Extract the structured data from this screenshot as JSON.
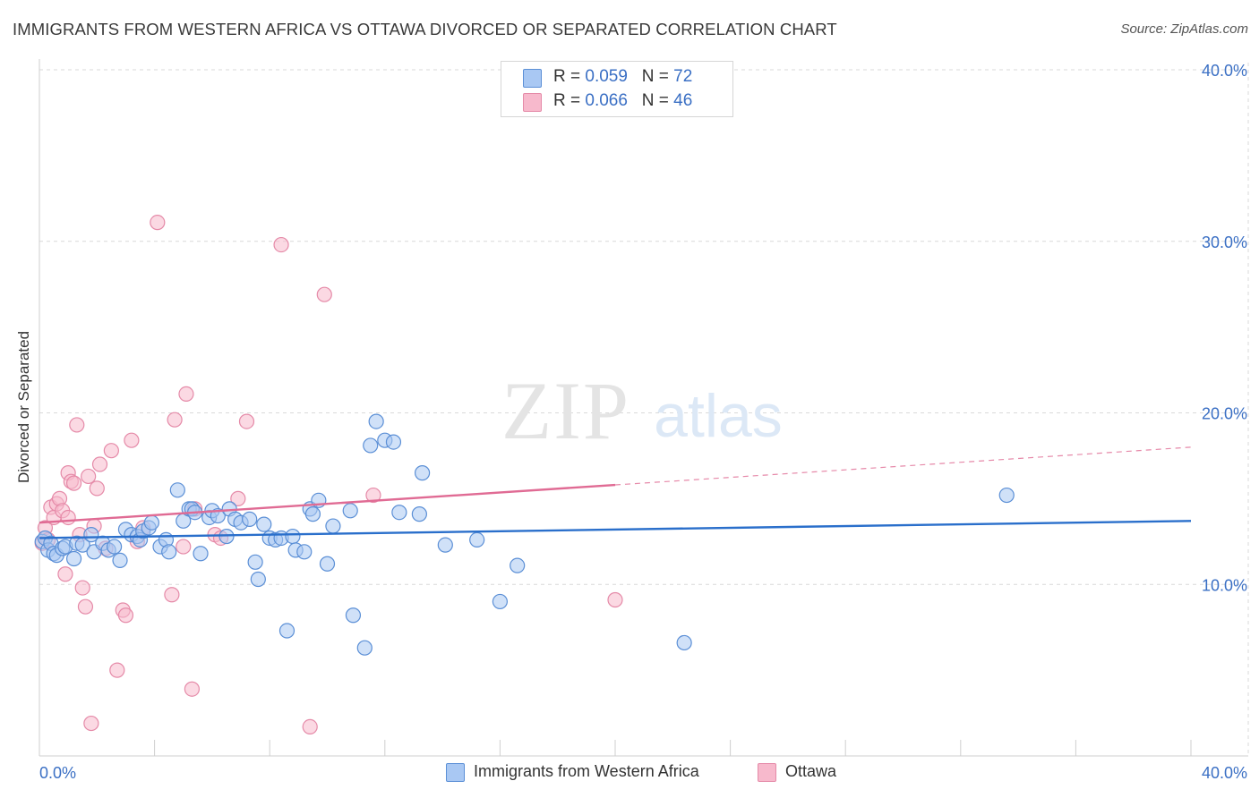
{
  "title": "IMMIGRANTS FROM WESTERN AFRICA VS OTTAWA DIVORCED OR SEPARATED CORRELATION CHART",
  "source": "Source: ZipAtlas.com",
  "watermark": {
    "zip": "ZIP",
    "atlas": "atlas"
  },
  "colors": {
    "blue_fill": "#a9c8f3",
    "blue_stroke": "#5b8fd6",
    "blue_line": "#2a6fcb",
    "pink_fill": "#f7b9cc",
    "pink_stroke": "#e58aa8",
    "pink_line": "#e06b94",
    "axis_text": "#3a6fc4",
    "grid": "#d9d9d9"
  },
  "legend_top": [
    {
      "r_label": "R = ",
      "r_value": "0.059",
      "n_label": "N = ",
      "n_value": "72",
      "color": "#a9c8f3"
    },
    {
      "r_label": "R = ",
      "r_value": "0.066",
      "n_label": "N = ",
      "n_value": "46",
      "color": "#f7b9cc"
    }
  ],
  "legend_bottom": [
    {
      "label": "Immigrants from Western Africa",
      "color": "#a9c8f3"
    },
    {
      "label": "Ottawa",
      "color": "#f7b9cc"
    }
  ],
  "chart_data": {
    "type": "scatter",
    "title": "IMMIGRANTS FROM WESTERN AFRICA VS OTTAWA DIVORCED OR SEPARATED CORRELATION CHART",
    "xlabel": "",
    "ylabel": "Divorced or Separated",
    "xlim": [
      0,
      40
    ],
    "ylim": [
      0,
      40
    ],
    "x_tick_labels": [
      "0.0%",
      "40.0%"
    ],
    "y_ticks": [
      10,
      20,
      30,
      40
    ],
    "y_tick_labels": [
      "10.0%",
      "20.0%",
      "30.0%",
      "40.0%"
    ],
    "grid": true,
    "legend_position": "top-center",
    "series": [
      {
        "name": "Immigrants from Western Africa",
        "r": 0.059,
        "n": 72,
        "trend": {
          "x": [
            0,
            40
          ],
          "y": [
            12.7,
            13.7
          ],
          "style": "solid"
        },
        "points": [
          [
            0.1,
            12.5
          ],
          [
            0.2,
            12.7
          ],
          [
            0.3,
            12.0
          ],
          [
            0.4,
            12.4
          ],
          [
            0.5,
            11.8
          ],
          [
            0.6,
            11.7
          ],
          [
            0.8,
            12.1
          ],
          [
            0.9,
            12.2
          ],
          [
            1.2,
            11.5
          ],
          [
            1.3,
            12.4
          ],
          [
            1.5,
            12.3
          ],
          [
            1.8,
            12.9
          ],
          [
            1.9,
            11.9
          ],
          [
            2.2,
            12.4
          ],
          [
            2.4,
            12.0
          ],
          [
            2.6,
            12.2
          ],
          [
            2.8,
            11.4
          ],
          [
            3.0,
            13.2
          ],
          [
            3.2,
            12.9
          ],
          [
            3.4,
            12.8
          ],
          [
            3.5,
            12.6
          ],
          [
            3.6,
            13.1
          ],
          [
            3.8,
            13.3
          ],
          [
            3.9,
            13.6
          ],
          [
            4.2,
            12.2
          ],
          [
            4.4,
            12.6
          ],
          [
            4.5,
            11.9
          ],
          [
            4.8,
            15.5
          ],
          [
            5.0,
            13.7
          ],
          [
            5.2,
            14.4
          ],
          [
            5.3,
            14.4
          ],
          [
            5.4,
            14.2
          ],
          [
            5.6,
            11.8
          ],
          [
            5.9,
            13.9
          ],
          [
            6.0,
            14.3
          ],
          [
            6.2,
            14.0
          ],
          [
            6.5,
            12.8
          ],
          [
            6.6,
            14.4
          ],
          [
            6.8,
            13.8
          ],
          [
            7.0,
            13.6
          ],
          [
            7.3,
            13.8
          ],
          [
            7.5,
            11.3
          ],
          [
            7.6,
            10.3
          ],
          [
            7.8,
            13.5
          ],
          [
            8.0,
            12.7
          ],
          [
            8.2,
            12.6
          ],
          [
            8.4,
            12.7
          ],
          [
            8.6,
            7.3
          ],
          [
            8.8,
            12.8
          ],
          [
            8.9,
            12.0
          ],
          [
            9.2,
            11.9
          ],
          [
            9.4,
            14.4
          ],
          [
            9.5,
            14.1
          ],
          [
            9.7,
            14.9
          ],
          [
            10.0,
            11.2
          ],
          [
            10.2,
            13.4
          ],
          [
            10.8,
            14.3
          ],
          [
            10.9,
            8.2
          ],
          [
            11.3,
            6.3
          ],
          [
            11.5,
            18.1
          ],
          [
            11.7,
            19.5
          ],
          [
            12.0,
            18.4
          ],
          [
            12.3,
            18.3
          ],
          [
            12.5,
            14.2
          ],
          [
            13.2,
            14.1
          ],
          [
            13.3,
            16.5
          ],
          [
            14.1,
            12.3
          ],
          [
            15.2,
            12.6
          ],
          [
            16.0,
            9.0
          ],
          [
            16.6,
            11.1
          ],
          [
            22.4,
            6.6
          ],
          [
            33.6,
            15.2
          ]
        ]
      },
      {
        "name": "Ottawa",
        "r": 0.066,
        "n": 46,
        "trend": {
          "x": [
            0,
            20
          ],
          "y": [
            13.6,
            15.8
          ],
          "style": "solid",
          "dashed_extension": {
            "x": [
              20,
              40
            ],
            "y": [
              15.8,
              18.0
            ]
          }
        },
        "points": [
          [
            0.1,
            12.4
          ],
          [
            0.2,
            13.3
          ],
          [
            0.3,
            12.6
          ],
          [
            0.4,
            14.5
          ],
          [
            0.5,
            13.9
          ],
          [
            0.6,
            14.7
          ],
          [
            0.7,
            15.0
          ],
          [
            0.8,
            14.3
          ],
          [
            0.9,
            10.6
          ],
          [
            1.0,
            16.5
          ],
          [
            1.0,
            13.9
          ],
          [
            1.1,
            16.0
          ],
          [
            1.2,
            15.9
          ],
          [
            1.3,
            19.3
          ],
          [
            1.4,
            12.9
          ],
          [
            1.5,
            9.8
          ],
          [
            1.6,
            8.7
          ],
          [
            1.7,
            16.3
          ],
          [
            1.8,
            1.9
          ],
          [
            1.9,
            13.4
          ],
          [
            2.0,
            15.6
          ],
          [
            2.1,
            17.0
          ],
          [
            2.3,
            12.1
          ],
          [
            2.5,
            17.8
          ],
          [
            2.7,
            5.0
          ],
          [
            2.9,
            8.5
          ],
          [
            3.0,
            8.2
          ],
          [
            3.2,
            18.4
          ],
          [
            3.4,
            12.5
          ],
          [
            3.6,
            13.3
          ],
          [
            4.1,
            31.1
          ],
          [
            4.6,
            9.4
          ],
          [
            4.7,
            19.6
          ],
          [
            5.0,
            12.2
          ],
          [
            5.1,
            21.1
          ],
          [
            5.3,
            3.9
          ],
          [
            5.4,
            14.4
          ],
          [
            6.1,
            12.9
          ],
          [
            6.3,
            12.7
          ],
          [
            6.9,
            15.0
          ],
          [
            7.2,
            19.5
          ],
          [
            8.4,
            29.8
          ],
          [
            9.4,
            1.7
          ],
          [
            9.9,
            26.9
          ],
          [
            11.6,
            15.2
          ],
          [
            20.0,
            9.1
          ]
        ]
      }
    ]
  }
}
